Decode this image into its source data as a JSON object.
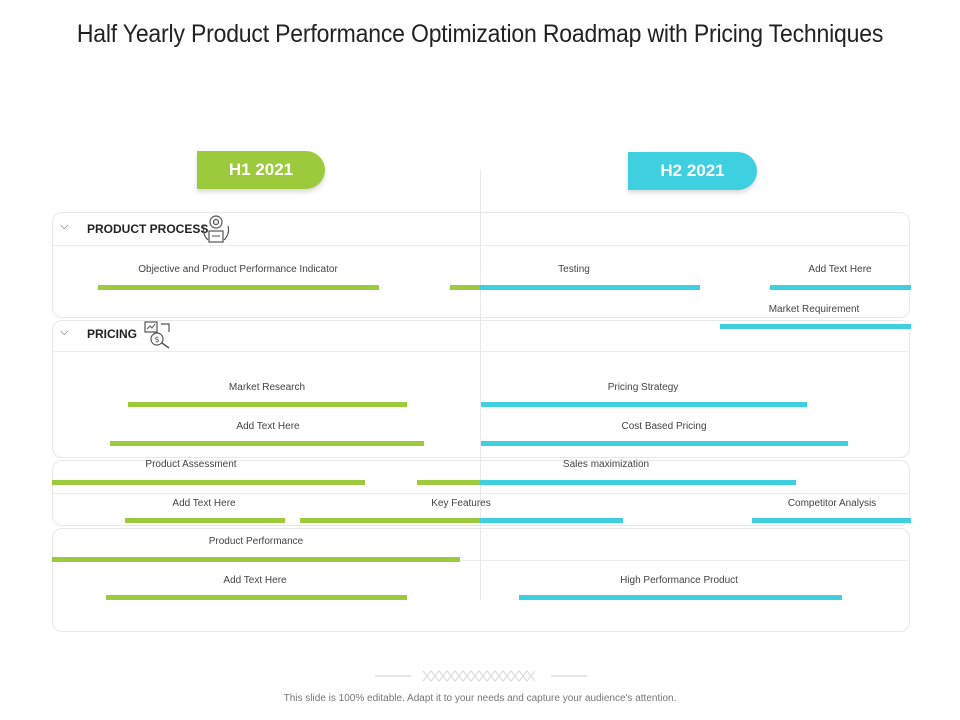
{
  "title": "Half Yearly Product Performance Optimization Roadmap with Pricing Techniques",
  "periods": {
    "h1": "H1 2021",
    "h2": "H2 2021"
  },
  "sections": {
    "product_process": {
      "label": "PRODUCT PROCESS",
      "icon": "gears-box-icon"
    },
    "pricing": {
      "label": "PRICING",
      "icon": "pricing-chart-icon"
    }
  },
  "labels": {
    "objective": "Objective and Product Performance Indicator",
    "testing": "Testing",
    "add_text_1": "Add Text Here",
    "market_requirement": "Market Requirement",
    "market_research": "Market Research",
    "pricing_strategy": "Pricing Strategy",
    "add_text_2": "Add Text Here",
    "cost_based_pricing": "Cost Based Pricing",
    "product_assessment": "Product Assessment",
    "sales_maximization": "Sales maximization",
    "add_text_3": "Add Text Here",
    "key_features": "Key Features",
    "competitor_analysis": "Competitor Analysis",
    "product_performance": "Product Performance",
    "add_text_4": "Add Text Here",
    "high_performance_product": "High Performance Product"
  },
  "footer": "This slide is 100% editable. Adapt it to your needs and capture your audience's attention.",
  "colors": {
    "h1": "#9bcb3c",
    "h2": "#3ecfe0"
  }
}
